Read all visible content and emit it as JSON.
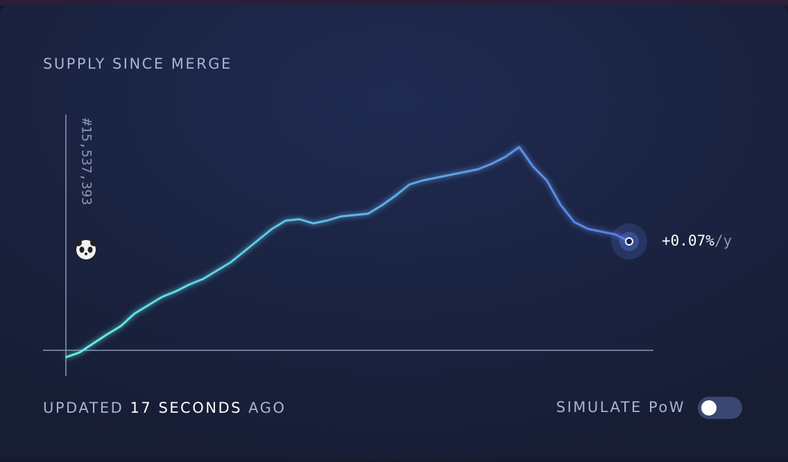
{
  "card": {
    "title": "SUPPLY SINCE MERGE",
    "block_label": "#15,537,393",
    "rate": "+0.07%",
    "rate_unit": "/y",
    "updated_prefix": "UPDATED",
    "updated_count": "17",
    "updated_unit": "SECONDS",
    "updated_suffix": "AGO",
    "toggle_label": "SIMULATE PoW"
  },
  "chart_data": {
    "type": "line",
    "values": [
      -10,
      -3,
      10,
      23,
      35,
      53,
      65,
      77,
      85,
      95,
      103,
      115,
      127,
      143,
      159,
      175,
      187,
      189,
      183,
      187,
      193,
      195,
      197,
      209,
      223,
      239,
      245,
      249,
      253,
      257,
      261,
      269,
      279,
      293,
      265,
      245,
      210,
      185,
      175,
      171,
      167,
      157
    ],
    "ylim": [
      -20,
      300
    ],
    "colors": [
      "#62f3e6",
      "#5a7ce6"
    ]
  }
}
